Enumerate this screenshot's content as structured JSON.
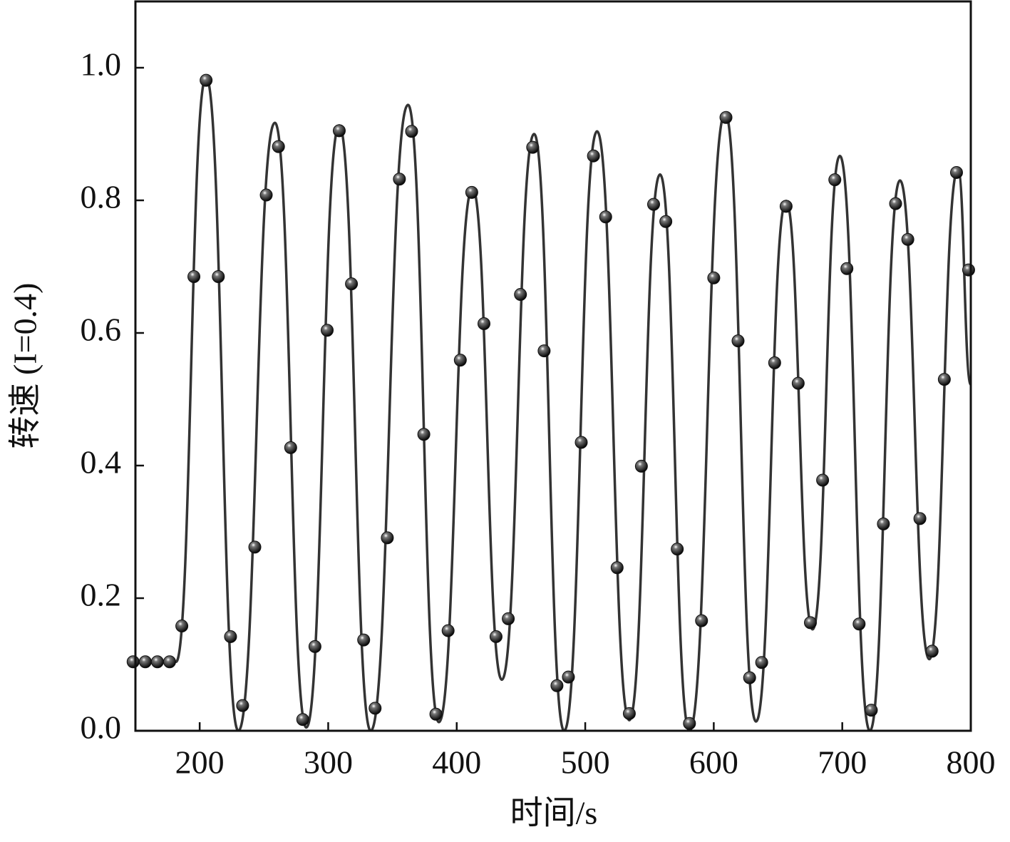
{
  "chart_data": {
    "type": "scatter",
    "xlabel": "时间/s",
    "ylabel": "转速 (I=0.4)",
    "xlim": [
      150,
      800
    ],
    "ylim": [
      0,
      1.1
    ],
    "xticks": [
      200,
      300,
      400,
      500,
      600,
      700,
      800
    ],
    "yticks": [
      {
        "value": 0,
        "label": "0.0"
      },
      {
        "value": 0.2,
        "label": "0.2"
      },
      {
        "value": 0.4,
        "label": "0.4"
      },
      {
        "value": 0.6,
        "label": "0.6"
      },
      {
        "value": 0.8,
        "label": "0.8"
      },
      {
        "value": 1.0,
        "label": "1.0"
      }
    ],
    "series": [
      {
        "kind": "line",
        "color": "#333333",
        "x": [
          150,
          181.6,
          205.0,
          230.1,
          258.5,
          283.0,
          308.6,
          333.1,
          362.1,
          386.1,
          412.3,
          435.1,
          460.2,
          483.6,
          509.2,
          534.3,
          558.2,
          581.1,
          608.9,
          632.9,
          656.3,
          676.9,
          698.1,
          721.5,
          744.9,
          767.7,
          790.0,
          800
        ],
        "values": [
          0.104,
          0.104,
          0.986,
          0.0,
          0.917,
          0.005,
          0.913,
          0.0,
          0.944,
          0.013,
          0.819,
          0.077,
          0.9,
          0.0,
          0.904,
          0.016,
          0.839,
          0.0,
          0.932,
          0.014,
          0.799,
          0.153,
          0.867,
          0.0,
          0.83,
          0.108,
          0.847,
          0.522
        ]
      },
      {
        "kind": "points",
        "color": "#111111",
        "x": [
          148.2,
          157.7,
          167.1,
          176.6,
          186.1,
          195.5,
          205.0,
          214.5,
          224.0,
          233.4,
          242.9,
          251.8,
          261.3,
          270.8,
          280.2,
          289.7,
          299.2,
          308.6,
          318.1,
          327.6,
          336.5,
          346.0,
          355.4,
          364.9,
          374.4,
          383.8,
          393.3,
          402.8,
          411.7,
          421.2,
          430.6,
          440.1,
          449.6,
          459.1,
          468.0,
          478.0,
          486.9,
          496.9,
          506.4,
          515.9,
          524.8,
          534.3,
          543.7,
          553.2,
          562.7,
          571.6,
          581.1,
          590.5,
          600.0,
          609.5,
          618.9,
          627.9,
          637.3,
          647.4,
          656.3,
          665.7,
          675.2,
          684.7,
          694.2,
          703.6,
          713.1,
          722.6,
          732.0,
          741.5,
          751.0,
          760.4,
          769.9,
          779.4,
          788.9,
          798.3
        ],
        "values": [
          0.104,
          0.104,
          0.104,
          0.104,
          0.158,
          0.685,
          0.981,
          0.685,
          0.142,
          0.038,
          0.277,
          0.808,
          0.881,
          0.427,
          0.017,
          0.127,
          0.604,
          0.905,
          0.674,
          0.137,
          0.034,
          0.291,
          0.832,
          0.904,
          0.447,
          0.025,
          0.151,
          0.559,
          0.812,
          0.614,
          0.142,
          0.169,
          0.658,
          0.88,
          0.573,
          0.068,
          0.081,
          0.435,
          0.867,
          0.775,
          0.246,
          0.026,
          0.399,
          0.794,
          0.768,
          0.274,
          0.011,
          0.166,
          0.683,
          0.925,
          0.588,
          0.08,
          0.103,
          0.555,
          0.791,
          0.524,
          0.163,
          0.378,
          0.831,
          0.697,
          0.161,
          0.031,
          0.312,
          0.795,
          0.741,
          0.32,
          0.12,
          0.53,
          0.842,
          0.695
        ]
      }
    ]
  }
}
